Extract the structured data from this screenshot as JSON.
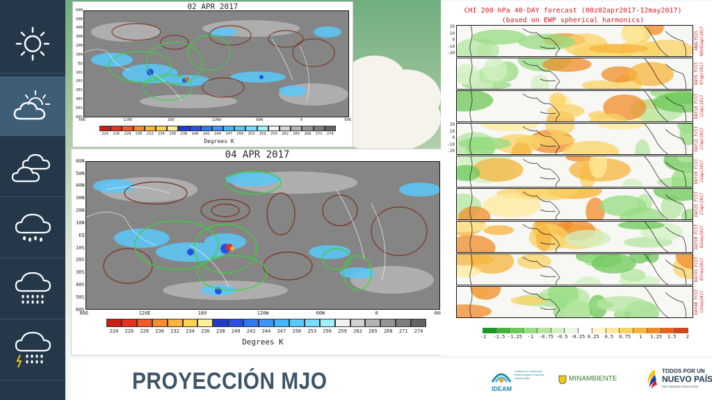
{
  "sidebar": {
    "items": [
      {
        "icon": "sun-icon",
        "active": false
      },
      {
        "icon": "partly-cloudy-icon",
        "active": true
      },
      {
        "icon": "clouds-icon",
        "active": false
      },
      {
        "icon": "light-rain-icon",
        "active": false
      },
      {
        "icon": "heavy-rain-icon",
        "active": false
      },
      {
        "icon": "thunderstorm-icon",
        "active": false
      }
    ]
  },
  "sat_top": {
    "date": "02 APR 2017",
    "lat_labels": [
      "60N",
      "50N",
      "40N",
      "30N",
      "20N",
      "10N",
      "EQ",
      "10S",
      "20S",
      "30S",
      "40S",
      "50S",
      "60S"
    ],
    "lon_labels": [
      "60E",
      "120E",
      "180",
      "120W",
      "60W",
      "0",
      "60E"
    ],
    "colorbar_values": [
      "224",
      "226",
      "228",
      "230",
      "232",
      "234",
      "236",
      "238",
      "240",
      "242",
      "244",
      "247",
      "250",
      "253",
      "256",
      "259",
      "262",
      "265",
      "268",
      "271",
      "274"
    ],
    "units": "Degrees K"
  },
  "sat_bottom": {
    "date": "04 APR 2017",
    "lat_labels": [
      "60N",
      "50N",
      "40N",
      "30N",
      "20N",
      "10N",
      "EQ",
      "10S",
      "20S",
      "30S",
      "40S",
      "50S",
      "60S"
    ],
    "lon_labels": [
      "60E",
      "120E",
      "180",
      "120W",
      "60W",
      "0",
      "60E"
    ],
    "colorbar_values": [
      "224",
      "226",
      "228",
      "230",
      "232",
      "234",
      "236",
      "238",
      "240",
      "242",
      "244",
      "247",
      "250",
      "253",
      "256",
      "259",
      "262",
      "265",
      "268",
      "271",
      "274"
    ],
    "units": "Degrees K"
  },
  "colorbar_colors": [
    "#c81e14",
    "#e6321e",
    "#f05a28",
    "#f58c32",
    "#f9b43c",
    "#fcd250",
    "#fff0a0",
    "#1e3cc8",
    "#2850e6",
    "#3278f0",
    "#3c96f5",
    "#46b4f8",
    "#5ac8fa",
    "#78dcfc",
    "#a0f0fd",
    "#f0f0f0",
    "#d2d2d2",
    "#b4b4b4",
    "#969696",
    "#7d7d7d",
    "#646464"
  ],
  "chi": {
    "title_line1": "CHI 200 hPa 40-DAY forecast (00z02apr2017-12may2017)",
    "title_line2": "(based on EWP spherical harmonics)",
    "yticks": [
      "20",
      "10",
      "0",
      "-10",
      "-20"
    ],
    "strips": [
      {
        "label": "ANALYSIS 00z02apr2017"
      },
      {
        "label": "DAY5 FCST 07apr2017"
      },
      {
        "label": "DAY10 FCST 12apr2017"
      },
      {
        "label": "DAY15 FCST 17apr2017"
      },
      {
        "label": "DAY20 FCST 22apr2017"
      },
      {
        "label": "DAY25 FCST 27apr2017"
      },
      {
        "label": "DAY30 FCST 02may2017"
      },
      {
        "label": "DAY35 FCST 07may2017"
      },
      {
        "label": "DAY40 FCST 12may2017"
      }
    ],
    "colorbar_values": [
      "-2",
      "-1.5",
      "-1.25",
      "-1",
      "-0.75",
      "-0.5",
      "-0.25",
      "0.25",
      "0.5",
      "0.75",
      "1",
      "1.25",
      "1.5",
      "2"
    ],
    "colorbar_colors": [
      "#1e9628",
      "#46b43c",
      "#6ec85a",
      "#96dc82",
      "#b4e6a0",
      "#d2f0c3",
      "#ebf7e3",
      "#ffffff",
      "#fff5c8",
      "#fde99b",
      "#f9d264",
      "#f5b43c",
      "#f08c28",
      "#e6641e",
      "#d2461e"
    ]
  },
  "footer": {
    "title": "PROYECCIÓN MJO",
    "logo_ideam": "IDEAM",
    "logo_ideam_sub": "Instituto de Hidrología, Meteorología y Estudios Ambientales",
    "logo_minambiente": "MINAMBIENTE",
    "logo_gov_line1": "TODOS POR UN",
    "logo_gov_line2": "NUEVO PAÍS",
    "logo_gov_line3": "PAZ  EQUIDAD  EDUCACIÓN"
  }
}
